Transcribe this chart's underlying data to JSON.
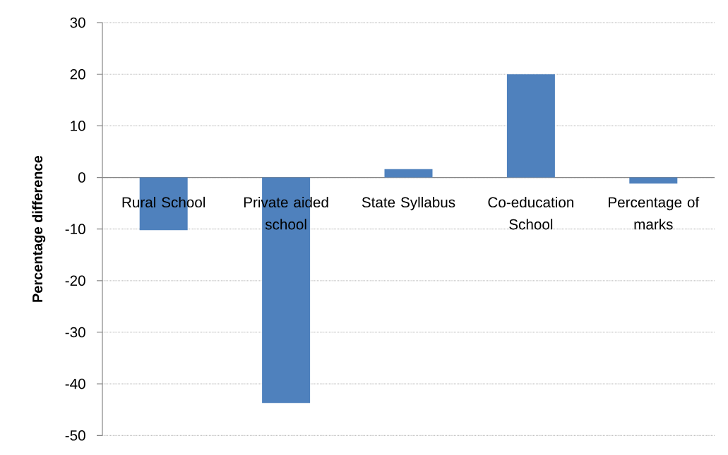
{
  "chart_data": {
    "type": "bar",
    "ylabel": "Percentage difference",
    "categories": [
      "Rural School",
      "Private aided school",
      "State Syllabus",
      "Co-education School",
      "Percentage of marks"
    ],
    "values": [
      -10.2,
      -43.7,
      1.6,
      20,
      -1.2
    ],
    "color": "#4f81bd",
    "ylim": [
      -50,
      30
    ],
    "yticks": [
      -50,
      -40,
      -30,
      -20,
      -10,
      0,
      10,
      20,
      30
    ],
    "grid": "y"
  }
}
